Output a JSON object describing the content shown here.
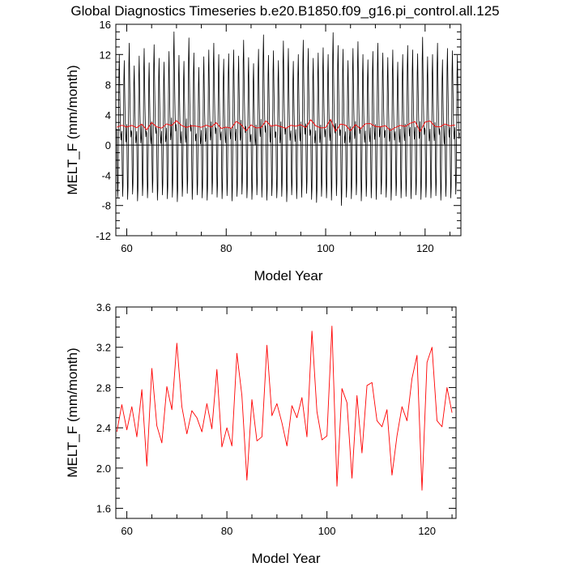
{
  "title": "Global Diagnostics Timeseries b.e20.B1850.f09_g16.pi_control.all.125",
  "colors": {
    "monthly": "#000000",
    "annual": "#ff0000"
  },
  "chart_data": [
    {
      "type": "line",
      "xlabel": "Model Year",
      "ylabel": "MELT_F (mm/month)",
      "xlim": [
        57.8,
        127.2
      ],
      "ylim": [
        -12,
        16
      ],
      "xticks": [
        60,
        80,
        100,
        120
      ],
      "yticks": [
        -12,
        -8,
        -4,
        0,
        4,
        8,
        12,
        16
      ],
      "zero_line": true,
      "series": [
        {
          "color": "#000000",
          "x_start": 58,
          "x_step": 0.0833333,
          "cycle_months": 12,
          "annual_peak": [
            12.0,
            11.2,
            13.5,
            10.5,
            11.8,
            12.8,
            10.9,
            13.3,
            11.5,
            11.0,
            12.4,
            15.0,
            11.9,
            11.1,
            14.2,
            12.2,
            10.3,
            11.7,
            12.6,
            13.5,
            12.0,
            11.4,
            12.1,
            12.6,
            11.8,
            13.9,
            11.6,
            10.8,
            12.7,
            14.6,
            11.9,
            12.5,
            11.2,
            13.8,
            12.8,
            11.1,
            12.0,
            13.9,
            12.8,
            11.5,
            12.2,
            12.9,
            12.0,
            14.9,
            13.2,
            12.7,
            11.2,
            12.8,
            13.7,
            12.0,
            11.3,
            12.4,
            13.5,
            12.2,
            11.6,
            12.6,
            11.0,
            12.0,
            13.2,
            12.6,
            12.1,
            14.3,
            11.7,
            12.0,
            13.5,
            11.3,
            12.8,
            12.5,
            11.9
          ],
          "annual_trough": [
            -6.9,
            -6.8,
            -7.2,
            -6.5,
            -7.4,
            -6.7,
            -7.0,
            -6.3,
            -7.3,
            -6.6,
            -7.1,
            -6.9,
            -7.5,
            -6.8,
            -6.4,
            -7.2,
            -6.6,
            -7.0,
            -7.3,
            -6.5,
            -6.9,
            -7.1,
            -6.7,
            -7.4,
            -6.8,
            -6.5,
            -7.0,
            -7.2,
            -6.6,
            -6.9,
            -7.3,
            -6.7,
            -7.0,
            -6.8,
            -7.5,
            -6.6,
            -7.1,
            -6.9,
            -6.4,
            -7.2,
            -7.6,
            -6.8,
            -7.0,
            -7.3,
            -6.7,
            -8.0,
            -6.9,
            -7.1,
            -6.6,
            -7.4,
            -6.8,
            -7.0,
            -7.2,
            -6.5,
            -6.9,
            -7.3,
            -6.7,
            -7.0,
            -6.8,
            -7.1,
            -6.6,
            -7.2,
            -6.9,
            -7.0,
            -6.7,
            -7.3,
            -6.8,
            -7.0,
            -6.5
          ]
        },
        {
          "color": "#ff0000",
          "x": [
            58,
            59,
            60,
            61,
            62,
            63,
            64,
            65,
            66,
            67,
            68,
            69,
            70,
            71,
            72,
            73,
            74,
            75,
            76,
            77,
            78,
            79,
            80,
            81,
            82,
            83,
            84,
            85,
            86,
            87,
            88,
            89,
            90,
            91,
            92,
            93,
            94,
            95,
            96,
            97,
            98,
            99,
            100,
            101,
            102,
            103,
            104,
            105,
            106,
            107,
            108,
            109,
            110,
            111,
            112,
            113,
            114,
            115,
            116,
            117,
            118,
            119,
            120,
            121,
            122,
            123,
            124,
            125,
            126
          ],
          "values": [
            2.36,
            2.63,
            2.38,
            2.61,
            2.31,
            2.78,
            2.02,
            2.99,
            2.42,
            2.25,
            2.81,
            2.58,
            3.24,
            2.61,
            2.34,
            2.57,
            2.5,
            2.36,
            2.64,
            2.39,
            2.98,
            2.21,
            2.4,
            2.22,
            3.14,
            2.72,
            1.88,
            2.68,
            2.27,
            2.31,
            3.22,
            2.52,
            2.64,
            2.45,
            2.22,
            2.62,
            2.5,
            2.7,
            2.31,
            3.36,
            2.56,
            2.28,
            2.32,
            3.41,
            1.82,
            2.79,
            2.65,
            1.9,
            2.72,
            2.15,
            2.82,
            2.85,
            2.47,
            2.41,
            2.58,
            1.93,
            2.32,
            2.61,
            2.47,
            2.89,
            3.12,
            1.78,
            3.05,
            3.2,
            2.47,
            2.41,
            2.8,
            2.55,
            2.66
          ]
        }
      ]
    },
    {
      "type": "line",
      "xlabel": "Model Year",
      "ylabel": "MELT_F (mm/month)",
      "xlim": [
        57.8,
        125.8
      ],
      "ylim": [
        1.5,
        3.6
      ],
      "xticks": [
        60,
        80,
        100,
        120
      ],
      "yticks": [
        1.6,
        2.0,
        2.4,
        2.8,
        3.2,
        3.6
      ],
      "series": [
        {
          "color": "#ff0000",
          "x": [
            58,
            59,
            60,
            61,
            62,
            63,
            64,
            65,
            66,
            67,
            68,
            69,
            70,
            71,
            72,
            73,
            74,
            75,
            76,
            77,
            78,
            79,
            80,
            81,
            82,
            83,
            84,
            85,
            86,
            87,
            88,
            89,
            90,
            91,
            92,
            93,
            94,
            95,
            96,
            97,
            98,
            99,
            100,
            101,
            102,
            103,
            104,
            105,
            106,
            107,
            108,
            109,
            110,
            111,
            112,
            113,
            114,
            115,
            116,
            117,
            118,
            119,
            120,
            121,
            122,
            123,
            124,
            125,
            126
          ],
          "values": [
            2.36,
            2.63,
            2.38,
            2.61,
            2.31,
            2.78,
            2.02,
            2.99,
            2.42,
            2.25,
            2.81,
            2.58,
            3.24,
            2.61,
            2.34,
            2.57,
            2.5,
            2.36,
            2.64,
            2.39,
            2.98,
            2.21,
            2.4,
            2.22,
            3.14,
            2.72,
            1.88,
            2.68,
            2.27,
            2.31,
            3.22,
            2.52,
            2.64,
            2.45,
            2.22,
            2.62,
            2.5,
            2.7,
            2.31,
            3.36,
            2.56,
            2.28,
            2.32,
            3.41,
            1.82,
            2.79,
            2.65,
            1.9,
            2.72,
            2.15,
            2.82,
            2.85,
            2.47,
            2.41,
            2.58,
            1.93,
            2.32,
            2.61,
            2.47,
            2.89,
            3.12,
            1.78,
            3.05,
            3.2,
            2.47,
            2.41,
            2.8,
            2.55,
            2.66
          ]
        }
      ]
    }
  ]
}
